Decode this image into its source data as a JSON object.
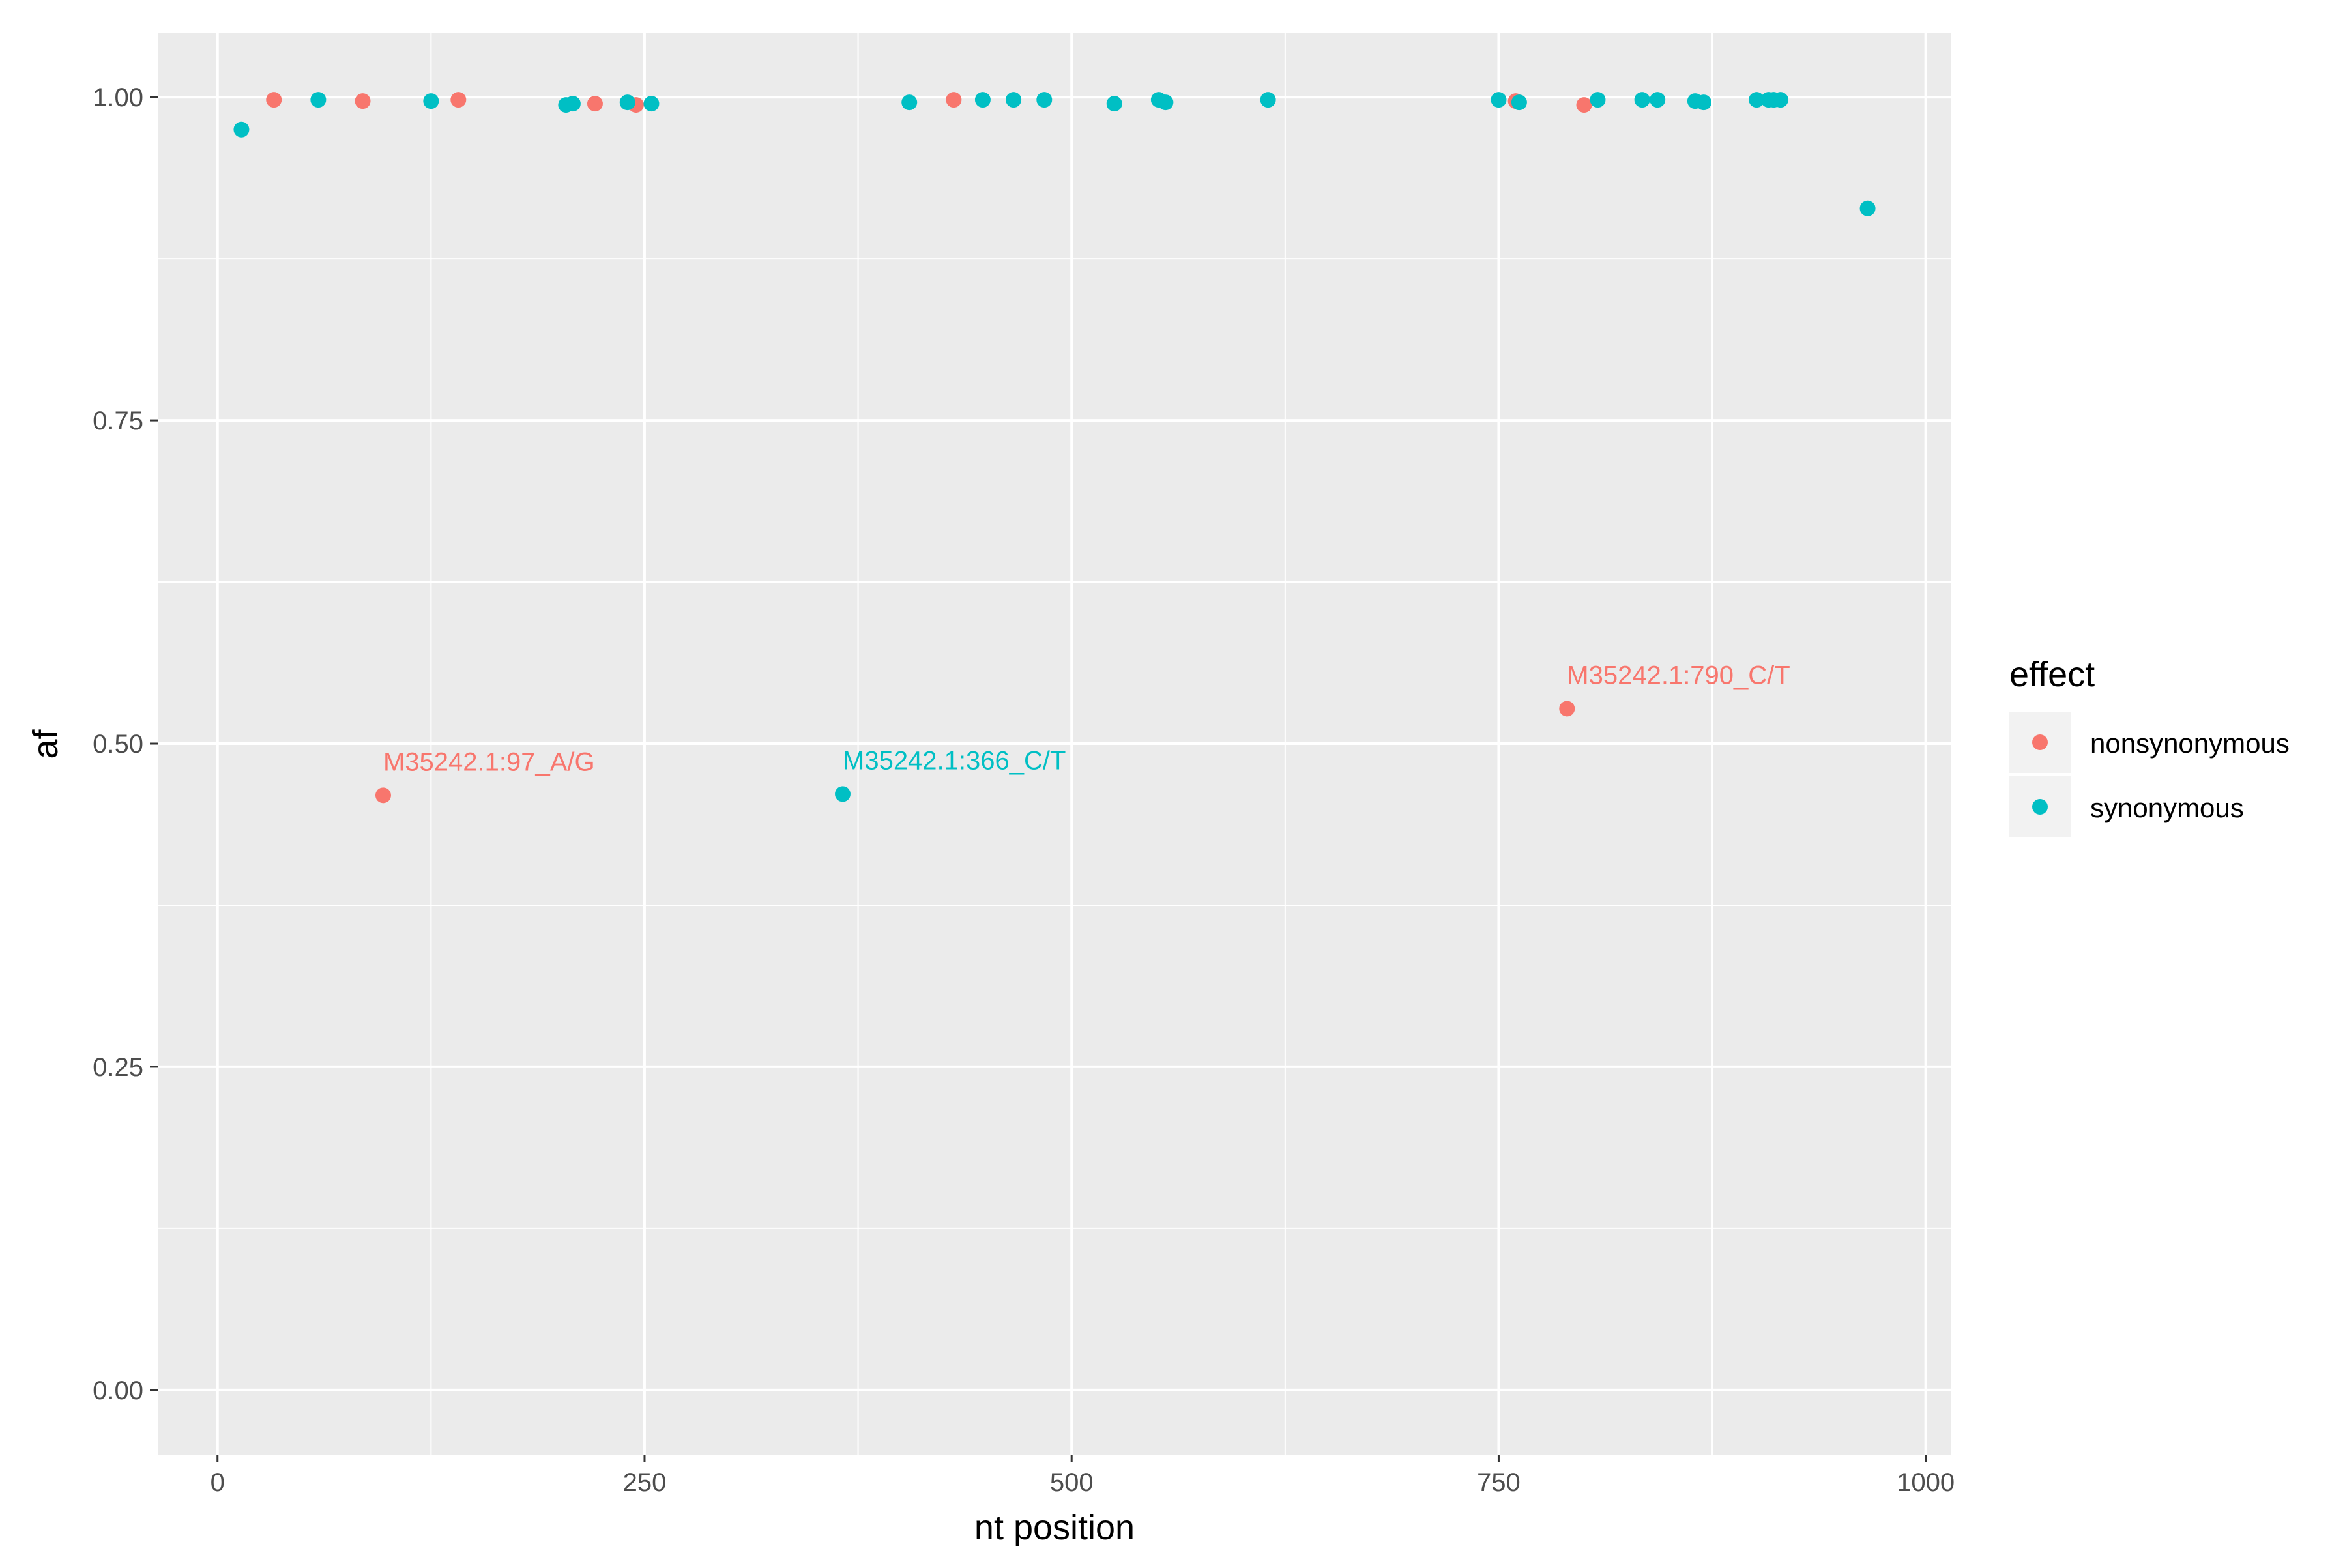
{
  "chart_data": {
    "type": "scatter",
    "title": "",
    "xlabel": "nt position",
    "ylabel": "af",
    "xlim": [
      -35,
      1015
    ],
    "ylim": [
      -0.05,
      1.05
    ],
    "x_ticks": [
      0,
      250,
      500,
      750,
      1000
    ],
    "x_tick_labels": [
      "0",
      "250",
      "500",
      "750",
      "1000"
    ],
    "y_ticks": [
      0,
      0.25,
      0.5,
      0.75,
      1.0
    ],
    "y_tick_labels": [
      "0.00",
      "0.25",
      "0.50",
      "0.75",
      "1.00"
    ],
    "grid": true,
    "legend": {
      "title": "effect",
      "position": "right",
      "entries": [
        "nonsynonymous",
        "synonymous"
      ]
    },
    "colors": {
      "nonsynonymous": "#F8766D",
      "synonymous": "#00BFC4",
      "panel": "#EBEBEB",
      "grid": "#FFFFFF"
    },
    "series": [
      {
        "name": "nonsynonymous",
        "points": [
          {
            "x": 33,
            "y": 0.998
          },
          {
            "x": 85,
            "y": 0.997
          },
          {
            "x": 97,
            "y": 0.46
          },
          {
            "x": 141,
            "y": 0.998
          },
          {
            "x": 221,
            "y": 0.995
          },
          {
            "x": 245,
            "y": 0.994
          },
          {
            "x": 431,
            "y": 0.998
          },
          {
            "x": 760,
            "y": 0.997
          },
          {
            "x": 790,
            "y": 0.527
          },
          {
            "x": 800,
            "y": 0.994
          }
        ]
      },
      {
        "name": "synonymous",
        "points": [
          {
            "x": 14,
            "y": 0.975
          },
          {
            "x": 59,
            "y": 0.998
          },
          {
            "x": 125,
            "y": 0.997
          },
          {
            "x": 204,
            "y": 0.994
          },
          {
            "x": 208,
            "y": 0.995
          },
          {
            "x": 240,
            "y": 0.996
          },
          {
            "x": 254,
            "y": 0.995
          },
          {
            "x": 366,
            "y": 0.461
          },
          {
            "x": 405,
            "y": 0.996
          },
          {
            "x": 448,
            "y": 0.998
          },
          {
            "x": 466,
            "y": 0.998
          },
          {
            "x": 484,
            "y": 0.998
          },
          {
            "x": 525,
            "y": 0.995
          },
          {
            "x": 551,
            "y": 0.998
          },
          {
            "x": 555,
            "y": 0.996
          },
          {
            "x": 615,
            "y": 0.998
          },
          {
            "x": 750,
            "y": 0.998
          },
          {
            "x": 762,
            "y": 0.996
          },
          {
            "x": 808,
            "y": 0.998
          },
          {
            "x": 834,
            "y": 0.998
          },
          {
            "x": 843,
            "y": 0.998
          },
          {
            "x": 865,
            "y": 0.997
          },
          {
            "x": 870,
            "y": 0.996
          },
          {
            "x": 901,
            "y": 0.998
          },
          {
            "x": 908,
            "y": 0.998
          },
          {
            "x": 911,
            "y": 0.998
          },
          {
            "x": 915,
            "y": 0.998
          },
          {
            "x": 966,
            "y": 0.914
          }
        ]
      }
    ],
    "annotations": [
      {
        "text": "M35242.1:97_A/G",
        "x": 97,
        "y": 0.46,
        "series": "nonsynonymous"
      },
      {
        "text": "M35242.1:366_C/T",
        "x": 366,
        "y": 0.461,
        "series": "synonymous"
      },
      {
        "text": "M35242.1:790_C/T",
        "x": 790,
        "y": 0.527,
        "series": "nonsynonymous"
      }
    ]
  }
}
